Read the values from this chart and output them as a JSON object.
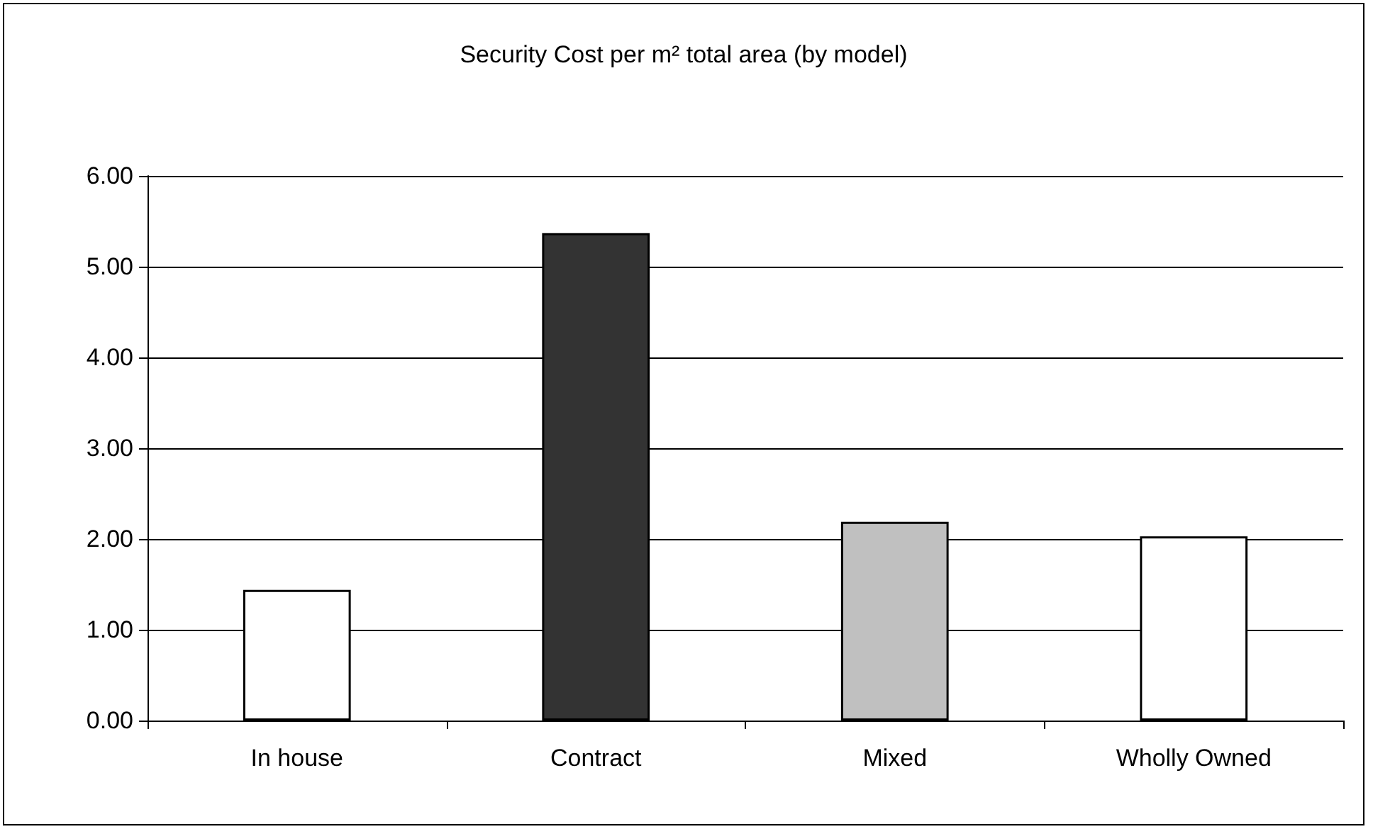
{
  "chart_data": {
    "type": "bar",
    "title": "Security Cost per m² total area (by model)",
    "categories": [
      "In house",
      "Contract",
      "Mixed",
      "Wholly Owned"
    ],
    "values": [
      1.44,
      5.37,
      2.19,
      2.03
    ],
    "colors": [
      "#ffffff",
      "#333333",
      "#c0c0c0",
      "#ffffff"
    ],
    "ylim": [
      0,
      6
    ],
    "yticks": [
      {
        "value": 0,
        "label": "0.00"
      },
      {
        "value": 1,
        "label": "1.00"
      },
      {
        "value": 2,
        "label": "2.00"
      },
      {
        "value": 3,
        "label": "3.00"
      },
      {
        "value": 4,
        "label": "4.00"
      },
      {
        "value": 5,
        "label": "5.00"
      },
      {
        "value": 6,
        "label": "6.00"
      }
    ],
    "grid": "y"
  }
}
